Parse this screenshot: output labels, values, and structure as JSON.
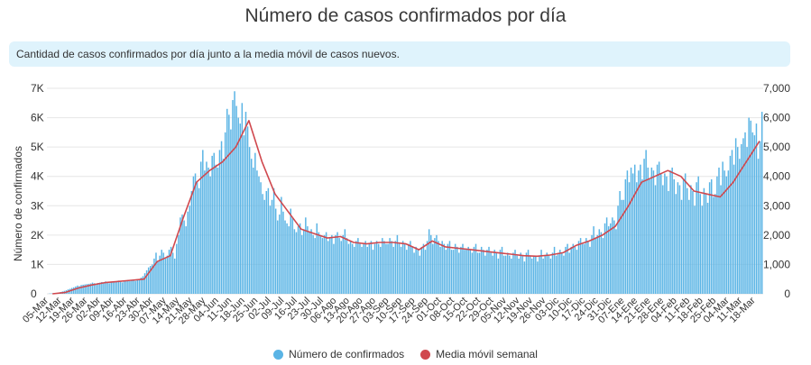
{
  "title": "Número de casos confirmados por día",
  "description": "Cantidad de casos confirmados por día junto a la media móvil de casos nuevos.",
  "legend": {
    "bars": "Número de confirmados",
    "line": "Media móvil semanal"
  },
  "colors": {
    "bars": "#5ab4e5",
    "line": "#d0484e",
    "grid": "#e6e6e6",
    "desc_bg": "#dff3fc"
  },
  "chart_data": {
    "type": "bar",
    "title": "Número de casos confirmados por día",
    "ylabel": "Número de confirmados",
    "ylim": [
      0,
      7000
    ],
    "left_ticks": [
      "0",
      "1K",
      "2K",
      "3K",
      "4K",
      "5K",
      "6K",
      "7K"
    ],
    "right_ticks": [
      "0",
      "1,000",
      "2,000",
      "3,000",
      "4,000",
      "5,000",
      "6,000",
      "7,000"
    ],
    "tick_values": [
      0,
      1000,
      2000,
      3000,
      4000,
      5000,
      6000,
      7000
    ],
    "x_ticks": [
      "05-Mar",
      "12-Mar",
      "19-Mar",
      "26-Mar",
      "02-Abr",
      "09-Abr",
      "16-Abr",
      "23-Abr",
      "30-Abr",
      "07-May",
      "14-May",
      "21-May",
      "28-May",
      "04-Jun",
      "11-Jun",
      "18-Jun",
      "25-Jun",
      "02-Jul",
      "09-Jul",
      "16-Jul",
      "23-Jul",
      "30-Jul",
      "06-Ago",
      "13-Ago",
      "20-Ago",
      "27-Ago",
      "03-Sep",
      "10-Sep",
      "17-Sep",
      "24-Sep",
      "01-Oct",
      "08-Oct",
      "15-Oct",
      "22-Oct",
      "29-Oct",
      "05-Nov",
      "12-Nov",
      "19-Nov",
      "26-Nov",
      "03-Dic",
      "10-Dic",
      "17-Dic",
      "24-Dic",
      "31-Dic",
      "07-Ene",
      "14-Ene",
      "21-Ene",
      "28-Ene",
      "04-Feb",
      "11-Feb",
      "18-Feb",
      "25-Feb",
      "04-Mar",
      "11-Mar",
      "18-Mar"
    ],
    "weekly_moving_average": [
      0,
      50,
      200,
      300,
      380,
      420,
      460,
      500,
      1100,
      1300,
      2600,
      3800,
      4200,
      4500,
      5000,
      5900,
      4500,
      3400,
      2800,
      2200,
      2050,
      1900,
      1950,
      1750,
      1700,
      1750,
      1750,
      1700,
      1500,
      1800,
      1600,
      1550,
      1500,
      1450,
      1400,
      1350,
      1300,
      1280,
      1320,
      1400,
      1650,
      1800,
      2000,
      2300,
      3000,
      3800,
      4000,
      4200,
      4000,
      3500,
      3400,
      3300,
      3800,
      4500,
      5200
    ],
    "daily_bar_values_by_week": [
      [
        0,
        10,
        15,
        20,
        25,
        30,
        40
      ],
      [
        60,
        80,
        100,
        120,
        150,
        170,
        200
      ],
      [
        220,
        250,
        280,
        260,
        300,
        310,
        320
      ],
      [
        330,
        340,
        350,
        380,
        360,
        340,
        370
      ],
      [
        380,
        400,
        380,
        420,
        390,
        360,
        410
      ],
      [
        420,
        400,
        430,
        450,
        410,
        390,
        440
      ],
      [
        450,
        470,
        430,
        460,
        480,
        440,
        500
      ],
      [
        500,
        550,
        600,
        700,
        800,
        900,
        950
      ],
      [
        1000,
        1200,
        1400,
        1100,
        1300,
        1500,
        1400
      ],
      [
        1200,
        1300,
        1500,
        1600,
        1400,
        1200,
        1700
      ],
      [
        2000,
        2600,
        2700,
        2500,
        2300,
        2800,
        3000
      ],
      [
        3500,
        4000,
        4100,
        3800,
        3600,
        4500,
        4900
      ],
      [
        4200,
        4500,
        4300,
        4000,
        4700,
        4800,
        4400
      ],
      [
        4300,
        4900,
        5200,
        4600,
        5500,
        6300,
        6100
      ],
      [
        5600,
        6600,
        6900,
        6400,
        6000,
        5800,
        6500
      ],
      [
        5400,
        6200,
        5700,
        5000,
        4600,
        4300,
        4800
      ],
      [
        4200,
        4000,
        3800,
        3400,
        3200,
        3500,
        3600
      ],
      [
        3000,
        3200,
        3600,
        2900,
        2500,
        2700,
        3300
      ],
      [
        2800,
        2500,
        2400,
        2300,
        2900,
        2600,
        2200
      ],
      [
        2100,
        2300,
        2400,
        2000,
        2200,
        2600,
        2300
      ],
      [
        2100,
        2200,
        2000,
        1900,
        2400,
        2100,
        2000
      ],
      [
        1900,
        2000,
        2100,
        1800,
        1900,
        2000,
        1700
      ],
      [
        2000,
        2100,
        1900,
        1800,
        2000,
        2200,
        1900
      ],
      [
        1700,
        1800,
        1700,
        1600,
        1800,
        1900,
        1700
      ],
      [
        1600,
        1700,
        1800,
        1600,
        1700,
        1800,
        1500
      ],
      [
        1700,
        1800,
        1700,
        1600,
        1900,
        1800,
        1700
      ],
      [
        1700,
        1900,
        1800,
        1600,
        1800,
        2000,
        1700
      ],
      [
        1600,
        1800,
        1700,
        1500,
        1700,
        1800,
        1600
      ],
      [
        1400,
        1600,
        1500,
        1300,
        1600,
        1700,
        1500
      ],
      [
        1800,
        2200,
        2000,
        1700,
        1900,
        2000,
        1800
      ],
      [
        1600,
        1800,
        1700,
        1500,
        1700,
        1800,
        1500
      ],
      [
        1500,
        1700,
        1600,
        1400,
        1600,
        1700,
        1500
      ],
      [
        1500,
        1600,
        1500,
        1400,
        1600,
        1700,
        1400
      ],
      [
        1400,
        1600,
        1500,
        1300,
        1500,
        1600,
        1400
      ],
      [
        1300,
        1500,
        1400,
        1200,
        1500,
        1600,
        1300
      ],
      [
        1300,
        1400,
        1300,
        1200,
        1400,
        1500,
        1300
      ],
      [
        1200,
        1400,
        1300,
        1100,
        1400,
        1500,
        1300
      ],
      [
        1200,
        1300,
        1300,
        1100,
        1300,
        1500,
        1200
      ],
      [
        1300,
        1400,
        1300,
        1200,
        1400,
        1600,
        1300
      ],
      [
        1400,
        1500,
        1400,
        1300,
        1600,
        1700,
        1400
      ],
      [
        1600,
        1700,
        1600,
        1500,
        1800,
        1900,
        1700
      ],
      [
        1700,
        1900,
        1800,
        1600,
        2000,
        2300,
        1900
      ],
      [
        2000,
        2200,
        2100,
        1900,
        2400,
        2600,
        2300
      ],
      [
        2400,
        2600,
        2500,
        2200,
        3000,
        3500,
        3200
      ],
      [
        3200,
        3900,
        4200,
        3800,
        4300,
        4100,
        4400
      ],
      [
        3800,
        4200,
        4400,
        3900,
        4600,
        4900,
        4300
      ],
      [
        3900,
        4300,
        4200,
        3700,
        4400,
        4500,
        4100
      ],
      [
        3700,
        4100,
        4000,
        3500,
        4200,
        4300,
        3900
      ],
      [
        3400,
        3800,
        3700,
        3200,
        3900,
        4100,
        3600
      ],
      [
        3200,
        3700,
        3500,
        3000,
        3800,
        4000,
        3400
      ],
      [
        3000,
        3600,
        3400,
        3100,
        3800,
        3900,
        3300
      ],
      [
        3400,
        4000,
        4300,
        3700,
        4500,
        4200,
        4000
      ],
      [
        4200,
        4700,
        4900,
        4400,
        5300,
        5000,
        4600
      ],
      [
        5100,
        5300,
        5500,
        5000,
        6000,
        5900,
        5500
      ],
      [
        5400,
        5800,
        4600,
        5200,
        6200
      ]
    ]
  }
}
